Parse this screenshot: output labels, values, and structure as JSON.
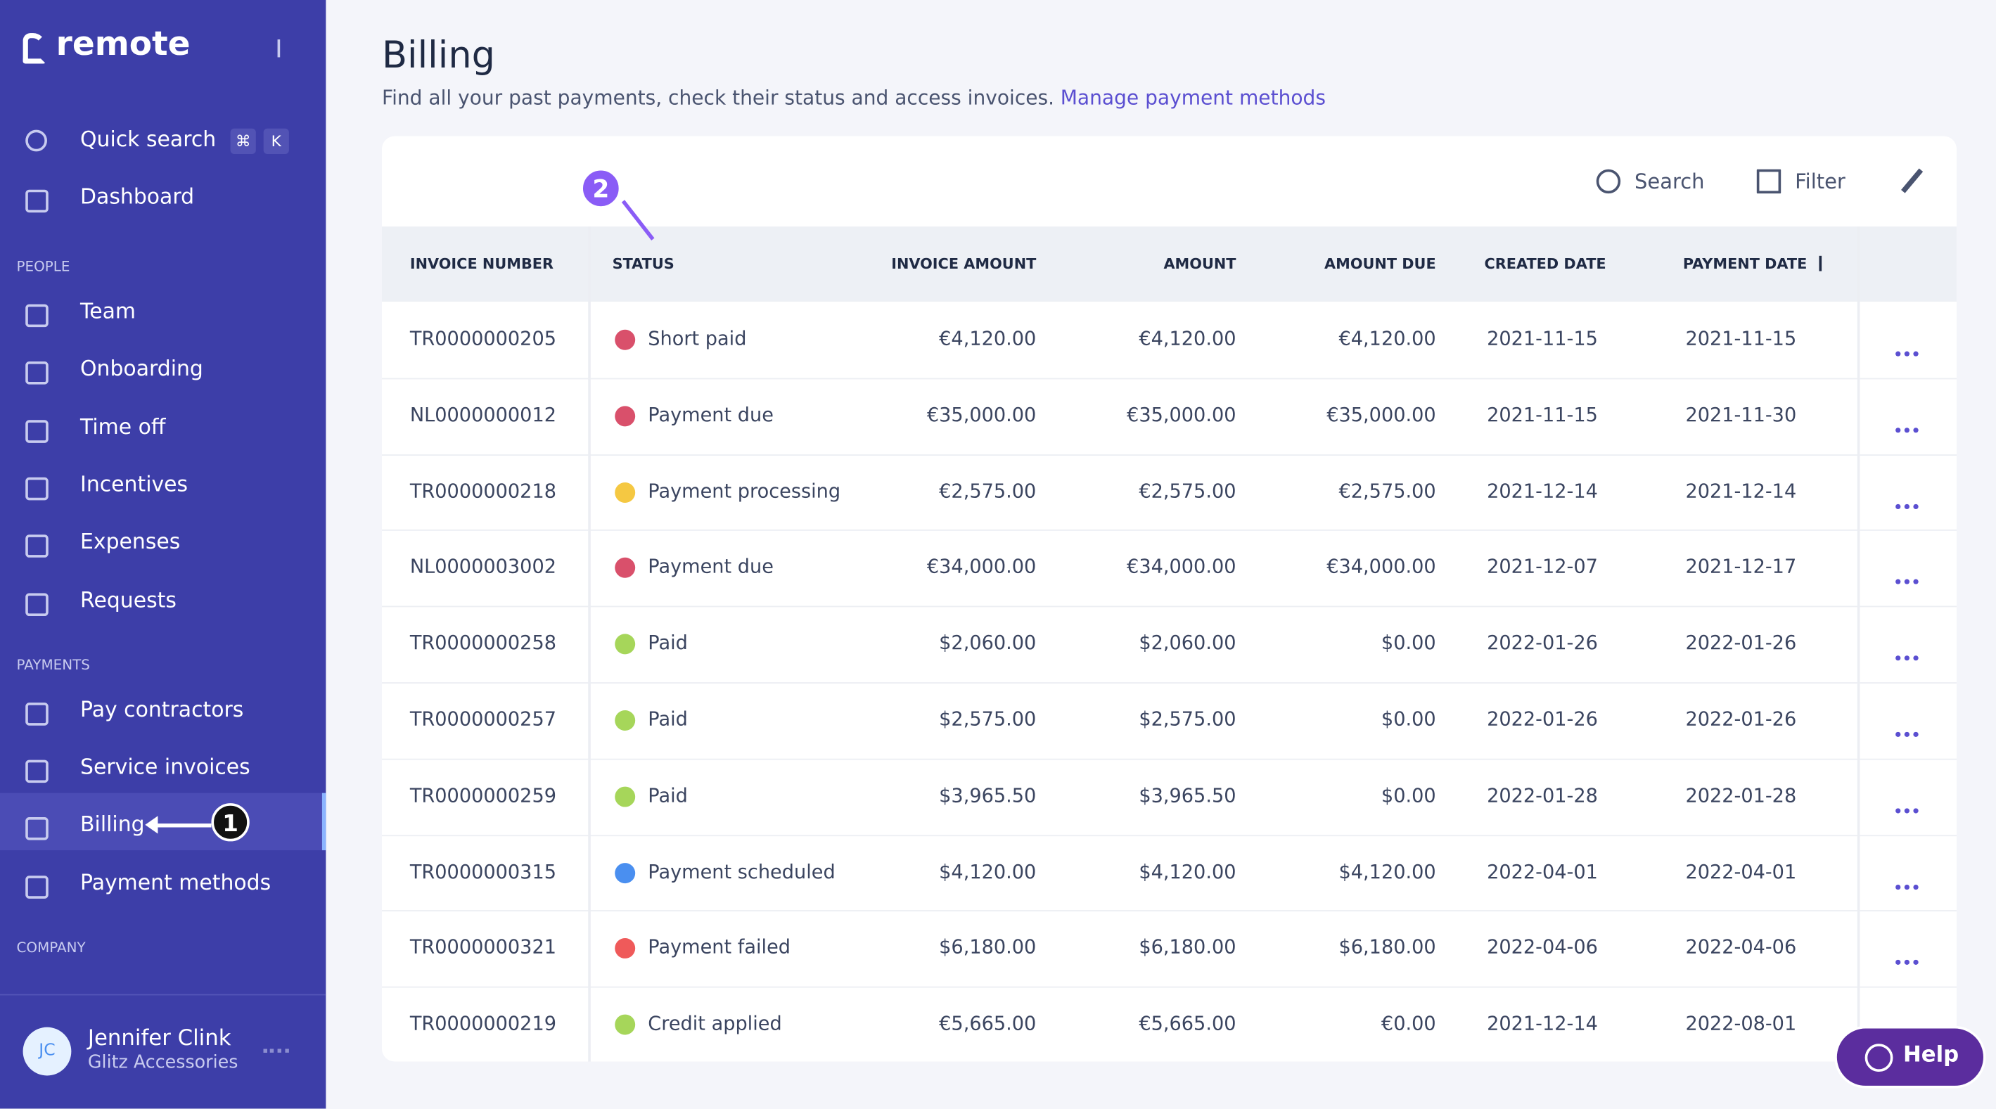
{
  "sidebar": {
    "brand": "remote",
    "quick_search": {
      "label": "Quick search",
      "keys": [
        "⌘",
        "K"
      ]
    },
    "top": [
      "Dashboard"
    ],
    "sections": [
      {
        "title": "PEOPLE",
        "items": [
          "Team",
          "Onboarding",
          "Time off",
          "Incentives",
          "Expenses",
          "Requests"
        ]
      },
      {
        "title": "PAYMENTS",
        "items": [
          "Pay contractors",
          "Service invoices",
          "Billing",
          "Payment methods"
        ]
      },
      {
        "title": "COMPANY",
        "items": []
      }
    ],
    "active": "Billing",
    "user": {
      "initials": "JC",
      "name": "Jennifer Clink",
      "company": "Glitz Accessories"
    }
  },
  "header": {
    "title": "Billing",
    "subtitle": "Find all your past payments, check their status and access invoices.",
    "link": "Manage payment methods"
  },
  "toolbar": [
    "Search",
    "Filter"
  ],
  "table": {
    "columns": [
      "INVOICE NUMBER",
      "STATUS",
      "INVOICE AMOUNT",
      "AMOUNT",
      "AMOUNT DUE",
      "CREATED DATE",
      "PAYMENT DATE"
    ],
    "sorted_column": 6,
    "rows": [
      [
        "TR0000000205",
        "Short paid",
        "€4,120.00",
        "€4,120.00",
        "€4,120.00",
        "2021-11-15",
        "2021-11-15"
      ],
      [
        "NL0000000012",
        "Payment due",
        "€35,000.00",
        "€35,000.00",
        "€35,000.00",
        "2021-11-15",
        "2021-11-30"
      ],
      [
        "TR0000000218",
        "Payment processing",
        "€2,575.00",
        "€2,575.00",
        "€2,575.00",
        "2021-12-14",
        "2021-12-14"
      ],
      [
        "NL0000003002",
        "Payment due",
        "€34,000.00",
        "€34,000.00",
        "€34,000.00",
        "2021-12-07",
        "2021-12-17"
      ],
      [
        "TR0000000258",
        "Paid",
        "$2,060.00",
        "$2,060.00",
        "$0.00",
        "2022-01-26",
        "2022-01-26"
      ],
      [
        "TR0000000257",
        "Paid",
        "$2,575.00",
        "$2,575.00",
        "$0.00",
        "2022-01-26",
        "2022-01-26"
      ],
      [
        "TR0000000259",
        "Paid",
        "$3,965.50",
        "$3,965.50",
        "$0.00",
        "2022-01-28",
        "2022-01-28"
      ],
      [
        "TR0000000315",
        "Payment scheduled",
        "$4,120.00",
        "$4,120.00",
        "$4,120.00",
        "2022-04-01",
        "2022-04-01"
      ],
      [
        "TR0000000321",
        "Payment failed",
        "$6,180.00",
        "$6,180.00",
        "$6,180.00",
        "2022-04-06",
        "2022-04-06"
      ],
      [
        "TR0000000219",
        "Credit applied",
        "€5,665.00",
        "€5,665.00",
        "€0.00",
        "2021-12-14",
        "2022-08-01"
      ]
    ],
    "dot_colors": [
      "#d9506b",
      "#d9506b",
      "#f5c842",
      "#d9506b",
      "#a6d65a",
      "#a6d65a",
      "#a6d65a",
      "#4a8ff0",
      "#ef5a5a",
      "#a6d65a"
    ]
  },
  "annotations": [
    "1",
    "2"
  ],
  "help": "Help"
}
